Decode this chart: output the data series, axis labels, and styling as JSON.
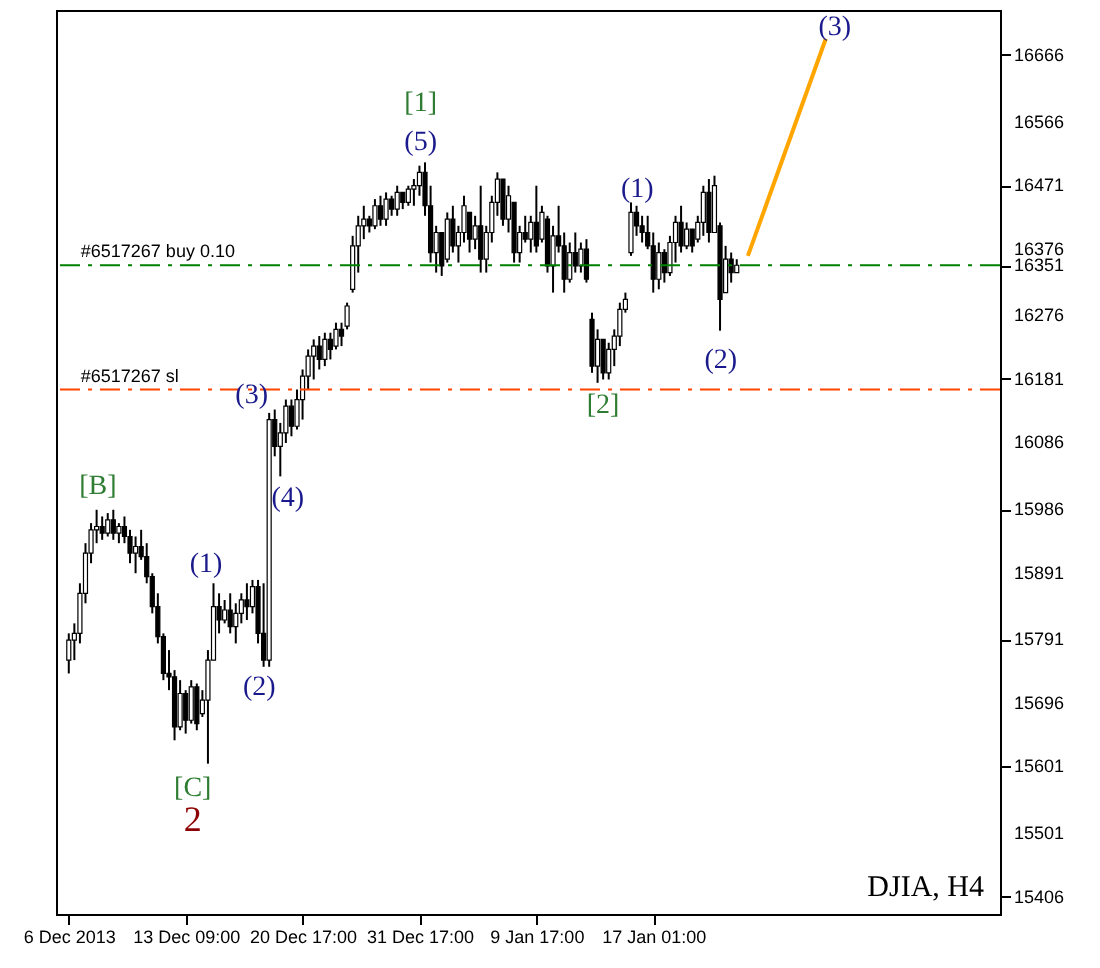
{
  "chart_data": {
    "type": "candlestick",
    "categories": [
      "6 Dec 2013",
      null,
      null,
      null,
      null,
      null,
      null,
      null,
      null,
      null,
      null,
      null,
      null,
      null,
      null,
      null,
      null,
      null,
      null,
      null,
      null,
      "13 Dec 09:00",
      null,
      null,
      null,
      null,
      null,
      null,
      null,
      null,
      null,
      null,
      null,
      null,
      null,
      null,
      null,
      null,
      null,
      null,
      null,
      null,
      "20 Dec 17:00",
      null,
      null,
      null,
      null,
      null,
      null,
      null,
      null,
      null,
      null,
      null,
      null,
      null,
      null,
      null,
      null,
      null,
      null,
      null,
      null,
      "31 Dec 17:00",
      null,
      null,
      null,
      null,
      null,
      null,
      null,
      null,
      null,
      null,
      null,
      null,
      null,
      null,
      null,
      null,
      null,
      null,
      null,
      null,
      "9 Jan 17:00",
      null,
      null,
      null,
      null,
      null,
      null,
      null,
      null,
      null,
      null,
      null,
      null,
      null,
      null,
      null,
      null,
      null,
      null,
      null,
      null,
      "17 Jan 01:00",
      null,
      null,
      null,
      null,
      null,
      null,
      null,
      null,
      null,
      null,
      null,
      null,
      null,
      null,
      null,
      null,
      null,
      null,
      null,
      null,
      null,
      null,
      null,
      null,
      null,
      null,
      null,
      null,
      null,
      null,
      null,
      null,
      null,
      null,
      null,
      null,
      null,
      null,
      null,
      null,
      null,
      null,
      null,
      null,
      null,
      null,
      null,
      null,
      null,
      null,
      null,
      null,
      null,
      null,
      null,
      null,
      null,
      null,
      null,
      null
    ],
    "ohlc": [
      [
        15760,
        15800,
        15740,
        15790
      ],
      [
        15790,
        15815,
        15760,
        15800
      ],
      [
        15800,
        15875,
        15785,
        15860
      ],
      [
        15860,
        15935,
        15845,
        15920
      ],
      [
        15920,
        15965,
        15905,
        15955
      ],
      [
        15955,
        15985,
        15935,
        15960
      ],
      [
        15960,
        15975,
        15940,
        15950
      ],
      [
        15950,
        15980,
        15945,
        15970
      ],
      [
        15970,
        15985,
        15940,
        15950
      ],
      [
        15950,
        15965,
        15935,
        15960
      ],
      [
        15960,
        15975,
        15935,
        15945
      ],
      [
        15945,
        15955,
        15905,
        15920
      ],
      [
        15920,
        15945,
        15890,
        15930
      ],
      [
        15930,
        15955,
        15910,
        15915
      ],
      [
        15915,
        15935,
        15875,
        15885
      ],
      [
        15885,
        15890,
        15830,
        15840
      ],
      [
        15840,
        15860,
        15785,
        15795
      ],
      [
        15795,
        15800,
        15730,
        15740
      ],
      [
        15740,
        15775,
        15715,
        15735
      ],
      [
        15735,
        15745,
        15640,
        15660
      ],
      [
        15660,
        15730,
        15655,
        15710
      ],
      [
        15710,
        15715,
        15650,
        15670
      ],
      [
        15670,
        15730,
        15665,
        15720
      ],
      [
        15720,
        15725,
        15655,
        15665
      ],
      [
        15680,
        15715,
        15675,
        15700
      ],
      [
        15700,
        15775,
        15605,
        15760
      ],
      [
        15760,
        15875,
        15760,
        15840
      ],
      [
        15840,
        15860,
        15800,
        15820
      ],
      [
        15820,
        15850,
        15815,
        15835
      ],
      [
        15835,
        15860,
        15800,
        15810
      ],
      [
        15810,
        15845,
        15785,
        15830
      ],
      [
        15830,
        15860,
        15815,
        15850
      ],
      [
        15850,
        15875,
        15820,
        15840
      ],
      [
        15840,
        15880,
        15830,
        15870
      ],
      [
        15870,
        15880,
        15785,
        15800
      ],
      [
        15800,
        15875,
        15750,
        15760
      ],
      [
        15760,
        16130,
        15750,
        16120
      ],
      [
        16120,
        16135,
        16065,
        16080
      ],
      [
        16080,
        16115,
        16035,
        16100
      ],
      [
        16100,
        16150,
        16085,
        16140
      ],
      [
        16140,
        16150,
        16095,
        16110
      ],
      [
        16110,
        16165,
        16105,
        16150
      ],
      [
        16150,
        16195,
        16120,
        16185
      ],
      [
        16185,
        16225,
        16165,
        16215
      ],
      [
        16215,
        16240,
        16180,
        16230
      ],
      [
        16230,
        16245,
        16195,
        16210
      ],
      [
        16210,
        16250,
        16200,
        16240
      ],
      [
        16240,
        16250,
        16210,
        16225
      ],
      [
        16230,
        16265,
        16225,
        16255
      ],
      [
        16255,
        16265,
        16230,
        16245
      ],
      [
        16260,
        16295,
        16255,
        16290
      ],
      [
        16315,
        16395,
        16310,
        16380
      ],
      [
        16380,
        16425,
        16340,
        16410
      ],
      [
        16410,
        16440,
        16390,
        16420
      ],
      [
        16420,
        16425,
        16400,
        16410
      ],
      [
        16410,
        16450,
        16405,
        16440
      ],
      [
        16440,
        16455,
        16410,
        16420
      ],
      [
        16420,
        16460,
        16410,
        16450
      ],
      [
        16450,
        16455,
        16425,
        16435
      ],
      [
        16435,
        16470,
        16425,
        16460
      ],
      [
        16460,
        16460,
        16435,
        16445
      ],
      [
        16445,
        16470,
        16440,
        16465
      ],
      [
        16465,
        16480,
        16440,
        16470
      ],
      [
        16470,
        16500,
        16455,
        16490
      ],
      [
        16490,
        16505,
        16425,
        16440
      ],
      [
        16440,
        16470,
        16355,
        16370
      ],
      [
        16370,
        16410,
        16340,
        16400
      ],
      [
        16400,
        16400,
        16335,
        16350
      ],
      [
        16360,
        16430,
        16355,
        16420
      ],
      [
        16420,
        16440,
        16370,
        16380
      ],
      [
        16380,
        16410,
        16355,
        16400
      ],
      [
        16400,
        16455,
        16385,
        16440
      ],
      [
        16430,
        16430,
        16370,
        16390
      ],
      [
        16390,
        16425,
        16375,
        16410
      ],
      [
        16410,
        16470,
        16340,
        16360
      ],
      [
        16360,
        16410,
        16340,
        16400
      ],
      [
        16400,
        16455,
        16385,
        16445
      ],
      [
        16445,
        16490,
        16425,
        16480
      ],
      [
        16480,
        16480,
        16410,
        16420
      ],
      [
        16420,
        16470,
        16400,
        16455
      ],
      [
        16445,
        16445,
        16355,
        16370
      ],
      [
        16370,
        16410,
        16355,
        16400
      ],
      [
        16400,
        16425,
        16385,
        16390
      ],
      [
        16390,
        16425,
        16370,
        16415
      ],
      [
        16415,
        16470,
        16370,
        16380
      ],
      [
        16390,
        16440,
        16385,
        16430
      ],
      [
        16420,
        16425,
        16340,
        16350
      ],
      [
        16350,
        16410,
        16310,
        16395
      ],
      [
        16395,
        16440,
        16370,
        16380
      ],
      [
        16380,
        16400,
        16310,
        16330
      ],
      [
        16330,
        16385,
        16325,
        16370
      ],
      [
        16370,
        16400,
        16340,
        16350
      ],
      [
        16350,
        16385,
        16340,
        16375
      ],
      [
        16375,
        16390,
        16325,
        16330
      ],
      [
        16270,
        16280,
        16190,
        16200
      ],
      [
        16200,
        16255,
        16175,
        16240
      ],
      [
        16240,
        16240,
        16180,
        16190
      ],
      [
        16190,
        16235,
        16180,
        16225
      ],
      [
        16225,
        16255,
        16200,
        16245
      ],
      [
        16245,
        16295,
        16230,
        16285
      ],
      [
        16285,
        16310,
        16280,
        16300
      ],
      [
        16370,
        16445,
        16365,
        16430
      ],
      [
        16430,
        16440,
        16395,
        16410
      ],
      [
        16410,
        16425,
        16385,
        16400
      ],
      [
        16400,
        16425,
        16375,
        16380
      ],
      [
        16380,
        16400,
        16310,
        16330
      ],
      [
        16330,
        16385,
        16315,
        16370
      ],
      [
        16370,
        16375,
        16325,
        16340
      ],
      [
        16340,
        16395,
        16335,
        16385
      ],
      [
        16385,
        16425,
        16355,
        16415
      ],
      [
        16415,
        16440,
        16370,
        16380
      ],
      [
        16380,
        16415,
        16375,
        16405
      ],
      [
        16405,
        16405,
        16370,
        16380
      ],
      [
        16390,
        16425,
        16385,
        16415
      ],
      [
        16415,
        16470,
        16395,
        16460
      ],
      [
        16460,
        16480,
        16385,
        16400
      ],
      [
        16400,
        16485,
        16400,
        16470
      ],
      [
        16410,
        16415,
        16253,
        16300
      ],
      [
        16310,
        16380,
        16310,
        16360
      ],
      [
        16360,
        16370,
        16325,
        16340
      ],
      [
        16340,
        16360,
        16340,
        16351
      ],
      null,
      null,
      null,
      null,
      null,
      null,
      null,
      null,
      null,
      null,
      null,
      null,
      null,
      null,
      null,
      null,
      null,
      null,
      null,
      null,
      null,
      null,
      null,
      null,
      null,
      null,
      null,
      null,
      null,
      null,
      null,
      null,
      null,
      null,
      null,
      null,
      null,
      null,
      null,
      null,
      null,
      null,
      null,
      null,
      null
    ],
    "series": [
      {
        "type": "line",
        "color": "#ffa500",
        "values": [
          null,
          null,
          null,
          null,
          null,
          null,
          null,
          null,
          null,
          null,
          null,
          null,
          null,
          null,
          null,
          null,
          null,
          null,
          null,
          null,
          null,
          null,
          null,
          null,
          null,
          null,
          null,
          null,
          null,
          null,
          null,
          null,
          null,
          null,
          null,
          null,
          null,
          null,
          null,
          null,
          null,
          null,
          null,
          null,
          null,
          null,
          null,
          null,
          null,
          null,
          null,
          null,
          null,
          null,
          null,
          null,
          null,
          null,
          null,
          null,
          null,
          null,
          null,
          null,
          null,
          null,
          null,
          null,
          null,
          null,
          null,
          null,
          null,
          null,
          null,
          null,
          null,
          null,
          null,
          null,
          null,
          null,
          null,
          null,
          null,
          null,
          null,
          null,
          null,
          null,
          null,
          null,
          null,
          null,
          null,
          null,
          null,
          null,
          null,
          null,
          null,
          null,
          null,
          null,
          null,
          null,
          null,
          null,
          null,
          null,
          null,
          null,
          null,
          null,
          null,
          null,
          null,
          null,
          null,
          null,
          null,
          null,
          16365,
          null,
          null,
          null,
          null,
          null,
          null,
          null,
          null,
          null,
          null,
          null,
          null,
          null,
          16690,
          null,
          null,
          null,
          null,
          null,
          null,
          null,
          null,
          null,
          null,
          null,
          null,
          null,
          null,
          null,
          null,
          null,
          null,
          null,
          null,
          null,
          null,
          null,
          null,
          null,
          null,
          null,
          null,
          null
        ]
      }
    ],
    "ylim": [
      15380,
      16733
    ],
    "yticks": [
      15406,
      15501,
      15601,
      15696,
      15791,
      15891,
      15986,
      16086,
      16181,
      16276,
      16351,
      16376,
      16471,
      16566,
      16666
    ],
    "ref_lines": [
      {
        "axis": "y",
        "value": 16351,
        "label": "#6517267 buy 0.10",
        "color": "#008000",
        "line_style": "dashed"
      },
      {
        "axis": "y",
        "value": 16165,
        "label": "#6517267 sl",
        "color": "#ff4500",
        "line_style": "dashed"
      }
    ],
    "annotations": [
      "[B]",
      "(1)",
      "[C]",
      "2",
      "(2)",
      "(3)",
      "(4)",
      "(5)",
      "[1]",
      "[2]",
      "(1)",
      "(2)",
      "(3)",
      "DJIA, H4"
    ]
  }
}
